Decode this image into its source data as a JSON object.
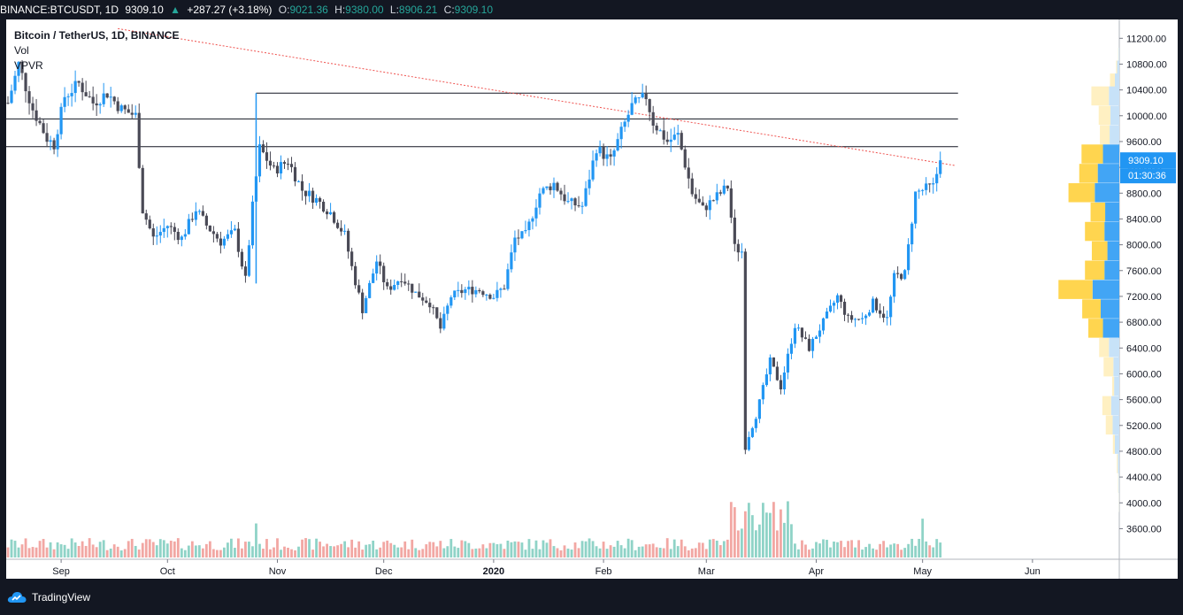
{
  "header": {
    "symbol": "BINANCE:BTCUSDT, 1D",
    "last": "9309.10",
    "change": "+287.27 (+3.18%)",
    "open_label": "O:",
    "open": "9021.36",
    "high_label": "H:",
    "high": "9380.00",
    "low_label": "L:",
    "low": "8906.21",
    "close_label": "C:",
    "close": "9309.10"
  },
  "legend": {
    "title": "Bitcoin / TetherUS, 1D, BINANCE",
    "vol": "Vol",
    "vpvr": "VPVR"
  },
  "price_marker": {
    "price": "9309.10",
    "countdown": "01:30:36"
  },
  "branding": {
    "name": "TradingView"
  },
  "colors": {
    "background": "#ffffff",
    "frame": "#131722",
    "up": "#2196f3",
    "down": "#4a4a56",
    "vol_up": "#8fd3c7",
    "vol_down": "#f2a7a3",
    "vpvr_up_strong": "#42a5f5",
    "vpvr_down_strong": "#ffd54f",
    "vpvr_up_faint": "#c7e2f8",
    "vpvr_down_faint": "#fff0c2",
    "trendline": "#ef5350",
    "marker": "#2196f3"
  },
  "chart_data": {
    "type": "candlestick",
    "title": "Bitcoin / TetherUS, 1D, BINANCE",
    "y_axis": {
      "min": 3400,
      "max": 11300,
      "position": "right",
      "ticks": [
        "11200.00",
        "10800.00",
        "10400.00",
        "10000.00",
        "9600.00",
        "9200.00",
        "8800.00",
        "8400.00",
        "8000.00",
        "7600.00",
        "7200.00",
        "6800.00",
        "6400.00",
        "6000.00",
        "5600.00",
        "5200.00",
        "4800.00",
        "4400.00",
        "4000.00",
        "3600.00"
      ]
    },
    "x_axis": {
      "ticks": [
        {
          "label": "Sep",
          "date": "2019-09-01"
        },
        {
          "label": "Oct",
          "date": "2019-10-01"
        },
        {
          "label": "Nov",
          "date": "2019-11-01"
        },
        {
          "label": "Dec",
          "date": "2019-12-01"
        },
        {
          "label": "2020",
          "date": "2020-01-01"
        },
        {
          "label": "Feb",
          "date": "2020-02-01"
        },
        {
          "label": "Mar",
          "date": "2020-03-01"
        },
        {
          "label": "Apr",
          "date": "2020-04-01"
        },
        {
          "label": "May",
          "date": "2020-05-01"
        },
        {
          "label": "Jun",
          "date": "2020-06-01"
        }
      ],
      "start": "2019-08-17",
      "end": "2020-06-20"
    },
    "close_path": [
      [
        "2019-08-17",
        10200
      ],
      [
        "2019-08-20",
        10800
      ],
      [
        "2019-08-24",
        10100
      ],
      [
        "2019-08-28",
        9650
      ],
      [
        "2019-08-30",
        9550
      ],
      [
        "2019-09-02",
        10300
      ],
      [
        "2019-09-06",
        10500
      ],
      [
        "2019-09-10",
        10200
      ],
      [
        "2019-09-14",
        10350
      ],
      [
        "2019-09-18",
        10100
      ],
      [
        "2019-09-22",
        10000
      ],
      [
        "2019-09-24",
        8550
      ],
      [
        "2019-09-27",
        8100
      ],
      [
        "2019-10-01",
        8300
      ],
      [
        "2019-10-05",
        8100
      ],
      [
        "2019-10-09",
        8550
      ],
      [
        "2019-10-12",
        8300
      ],
      [
        "2019-10-16",
        8050
      ],
      [
        "2019-10-20",
        8200
      ],
      [
        "2019-10-23",
        7450
      ],
      [
        "2019-10-25",
        8600
      ],
      [
        "2019-10-27",
        9500
      ],
      [
        "2019-10-31",
        9150
      ],
      [
        "2019-11-04",
        9300
      ],
      [
        "2019-11-08",
        8850
      ],
      [
        "2019-11-12",
        8700
      ],
      [
        "2019-11-16",
        8500
      ],
      [
        "2019-11-20",
        8150
      ],
      [
        "2019-11-22",
        7650
      ],
      [
        "2019-11-25",
        7000
      ],
      [
        "2019-11-29",
        7750
      ],
      [
        "2019-12-02",
        7300
      ],
      [
        "2019-12-06",
        7500
      ],
      [
        "2019-12-10",
        7250
      ],
      [
        "2019-12-14",
        7100
      ],
      [
        "2019-12-17",
        6700
      ],
      [
        "2019-12-20",
        7200
      ],
      [
        "2019-12-24",
        7300
      ],
      [
        "2019-12-28",
        7300
      ],
      [
        "2020-01-01",
        7200
      ],
      [
        "2020-01-04",
        7350
      ],
      [
        "2020-01-07",
        8100
      ],
      [
        "2020-01-10",
        8150
      ],
      [
        "2020-01-14",
        8800
      ],
      [
        "2020-01-18",
        8950
      ],
      [
        "2020-01-22",
        8650
      ],
      [
        "2020-01-26",
        8600
      ],
      [
        "2020-01-30",
        9500
      ],
      [
        "2020-02-03",
        9300
      ],
      [
        "2020-02-06",
        9750
      ],
      [
        "2020-02-09",
        10150
      ],
      [
        "2020-02-13",
        10300
      ],
      [
        "2020-02-15",
        9900
      ],
      [
        "2020-02-19",
        9600
      ],
      [
        "2020-02-22",
        9700
      ],
      [
        "2020-02-26",
        8800
      ],
      [
        "2020-02-29",
        8550
      ],
      [
        "2020-03-04",
        8750
      ],
      [
        "2020-03-07",
        8900
      ],
      [
        "2020-03-09",
        7950
      ],
      [
        "2020-03-11",
        7900
      ],
      [
        "2020-03-12",
        4900
      ],
      [
        "2020-03-15",
        5350
      ],
      [
        "2020-03-19",
        6200
      ],
      [
        "2020-03-22",
        5800
      ],
      [
        "2020-03-26",
        6750
      ],
      [
        "2020-03-30",
        6400
      ],
      [
        "2020-04-03",
        6800
      ],
      [
        "2020-04-07",
        7200
      ],
      [
        "2020-04-10",
        6850
      ],
      [
        "2020-04-14",
        6850
      ],
      [
        "2020-04-17",
        7100
      ],
      [
        "2020-04-21",
        6850
      ],
      [
        "2020-04-23",
        7500
      ],
      [
        "2020-04-26",
        7550
      ],
      [
        "2020-04-29",
        8800
      ],
      [
        "2020-05-01",
        8850
      ],
      [
        "2020-05-04",
        8900
      ],
      [
        "2020-05-06",
        9309.1
      ]
    ],
    "horizontal_levels": [
      10350,
      9950,
      9520
    ],
    "trendline": [
      [
        "2019-09-17",
        11350
      ],
      [
        "2020-05-10",
        9230
      ]
    ],
    "volume_profile": [
      {
        "price": 10900,
        "up": 0.01,
        "down": 0.004,
        "faint": true
      },
      {
        "price": 10700,
        "up": 0.03,
        "down": 0.01,
        "faint": true
      },
      {
        "price": 10500,
        "up": 0.06,
        "down": 0.05,
        "faint": true
      },
      {
        "price": 10300,
        "up": 0.14,
        "down": 0.18,
        "faint": true
      },
      {
        "price": 10000,
        "up": 0.12,
        "down": 0.12,
        "faint": true
      },
      {
        "price": 9700,
        "up": 0.13,
        "down": 0.1,
        "faint": true
      },
      {
        "price": 9400,
        "up": 0.22,
        "down": 0.22,
        "faint": false
      },
      {
        "price": 9100,
        "up": 0.29,
        "down": 0.19,
        "faint": false
      },
      {
        "price": 8800,
        "up": 0.33,
        "down": 0.27,
        "faint": false
      },
      {
        "price": 8500,
        "up": 0.19,
        "down": 0.15,
        "faint": false
      },
      {
        "price": 8200,
        "up": 0.2,
        "down": 0.2,
        "faint": false
      },
      {
        "price": 7900,
        "up": 0.16,
        "down": 0.16,
        "faint": false
      },
      {
        "price": 7600,
        "up": 0.2,
        "down": 0.2,
        "faint": false
      },
      {
        "price": 7300,
        "up": 0.36,
        "down": 0.35,
        "faint": false
      },
      {
        "price": 7000,
        "up": 0.25,
        "down": 0.19,
        "faint": false
      },
      {
        "price": 6700,
        "up": 0.22,
        "down": 0.15,
        "faint": false
      },
      {
        "price": 6400,
        "up": 0.14,
        "down": 0.1,
        "faint": true
      },
      {
        "price": 6100,
        "up": 0.08,
        "down": 0.1,
        "faint": true
      },
      {
        "price": 5800,
        "up": 0.07,
        "down": 0.02,
        "faint": true
      },
      {
        "price": 5500,
        "up": 0.11,
        "down": 0.09,
        "faint": true
      },
      {
        "price": 5200,
        "up": 0.09,
        "down": 0.07,
        "faint": true
      },
      {
        "price": 4900,
        "up": 0.06,
        "down": 0.02,
        "faint": true
      },
      {
        "price": 4600,
        "up": 0.02,
        "down": 0.01,
        "faint": true
      },
      {
        "price": 4300,
        "up": 0.01,
        "down": 0.005,
        "faint": true
      },
      {
        "price": 4000,
        "up": 0.004,
        "down": 0.002,
        "faint": true
      }
    ]
  }
}
